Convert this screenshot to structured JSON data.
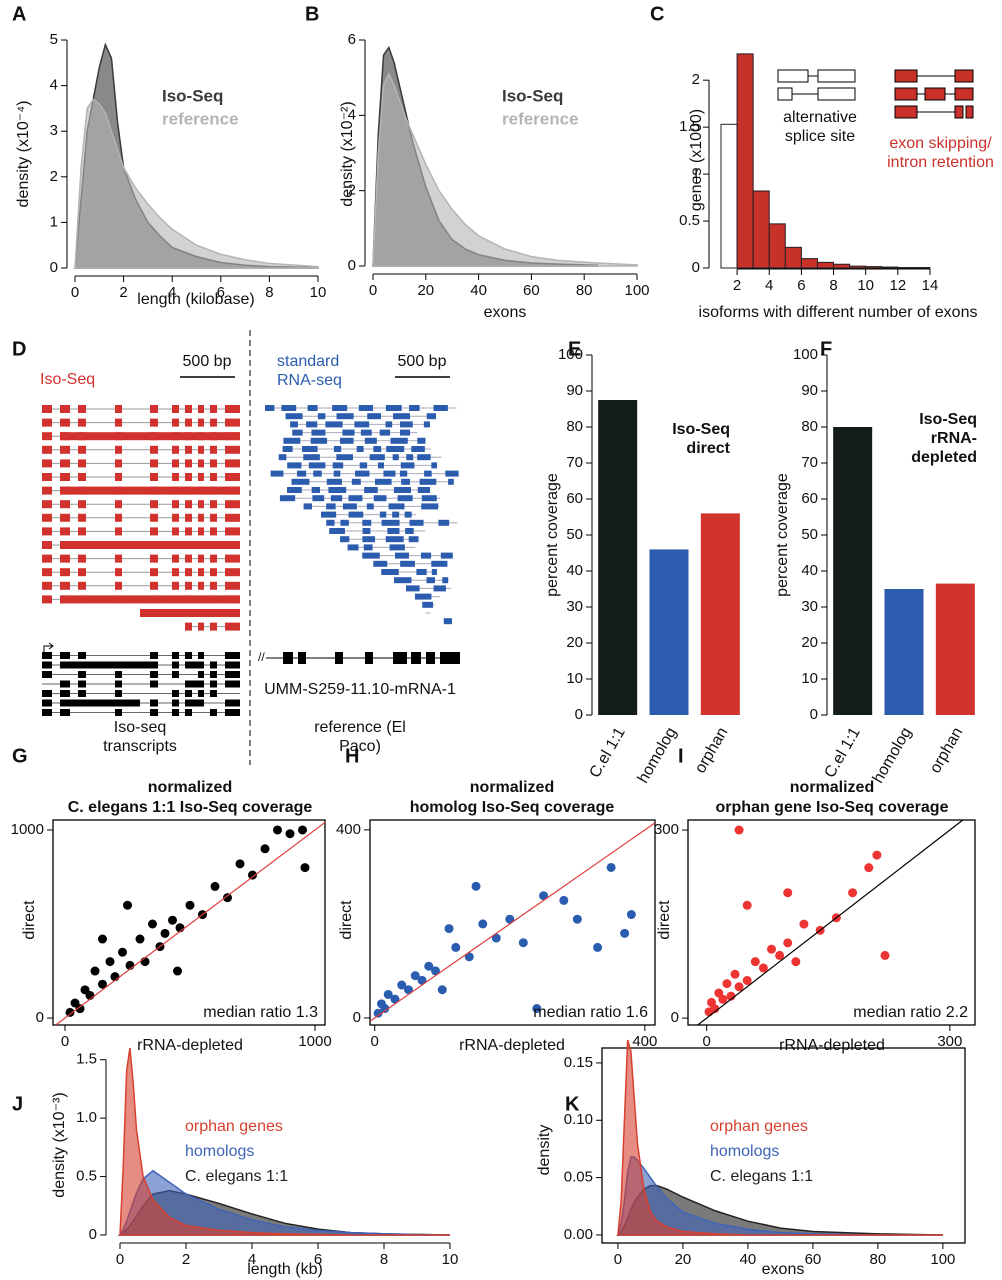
{
  "chart_data": [
    {
      "type": "density",
      "panel": "A",
      "xlabel": "length (kilobase)",
      "ylabel": "density (x10⁻⁴)",
      "x": [
        0,
        0.25,
        0.5,
        0.75,
        1,
        1.25,
        1.5,
        1.75,
        2,
        2.5,
        3,
        3.5,
        4,
        5,
        6,
        7,
        8,
        10
      ],
      "series": [
        {
          "name": "Iso-Seq",
          "color": "#3a3a3a",
          "values": [
            0,
            1.5,
            3.0,
            3.7,
            4.4,
            4.9,
            4.6,
            3.2,
            2.2,
            1.5,
            1.0,
            0.7,
            0.45,
            0.25,
            0.12,
            0.06,
            0.03,
            0.01
          ]
        },
        {
          "name": "reference",
          "color": "#b4b4b4",
          "values": [
            0,
            2.2,
            3.5,
            3.7,
            3.6,
            3.4,
            3.0,
            2.6,
            2.2,
            1.75,
            1.4,
            1.1,
            0.85,
            0.5,
            0.3,
            0.18,
            0.1,
            0.03
          ]
        }
      ],
      "xlim": [
        0,
        10
      ],
      "xticks": [
        0,
        2,
        4,
        6,
        8,
        10
      ],
      "ylim": [
        0,
        5
      ],
      "yticks": [
        0,
        1,
        2,
        3,
        4,
        5
      ]
    },
    {
      "type": "density",
      "panel": "B",
      "xlabel": "exons",
      "ylabel": "density (x10⁻²)",
      "x": [
        0,
        2,
        4,
        6,
        8,
        10,
        12,
        15,
        20,
        25,
        30,
        35,
        40,
        50,
        60,
        70,
        85,
        100
      ],
      "series": [
        {
          "name": "Iso-Seq",
          "color": "#3a3a3a",
          "values": [
            0,
            3.5,
            5.6,
            5.8,
            5.4,
            4.8,
            4.2,
            3.3,
            2.1,
            1.2,
            0.7,
            0.45,
            0.3,
            0.15,
            0.08,
            0.05,
            0.02,
            null
          ]
        },
        {
          "name": "reference",
          "color": "#b4b4b4",
          "values": [
            0,
            3.0,
            4.8,
            5.1,
            4.8,
            4.4,
            4.0,
            3.5,
            2.7,
            2.0,
            1.5,
            1.1,
            0.8,
            0.45,
            0.25,
            0.15,
            0.08,
            0.03
          ]
        }
      ],
      "xlim": [
        0,
        100
      ],
      "xticks": [
        0,
        20,
        40,
        60,
        80,
        100
      ],
      "ylim": [
        0,
        6
      ],
      "yticks": [
        0,
        2,
        4,
        6
      ]
    },
    {
      "type": "histogram",
      "panel": "C",
      "xlabel": "isoforms with different number of exons",
      "ylabel": "genes (x1000)",
      "series": [
        {
          "name": "alternative splice site",
          "color": "#ffffff",
          "bins": [
            1,
            2
          ],
          "values": [
            1.53
          ]
        },
        {
          "name": "exon skipping/ intron retention",
          "color": "#c8302a",
          "bins": [
            2,
            3,
            4,
            5,
            6,
            7,
            8,
            9,
            10,
            11,
            12,
            13,
            14
          ],
          "values": [
            2.28,
            0.82,
            0.47,
            0.22,
            0.1,
            0.06,
            0.04,
            0.02,
            0.015,
            0.01,
            0.005,
            0.005
          ]
        }
      ],
      "xlim": [
        1,
        14
      ],
      "xticks": [
        2,
        4,
        6,
        8,
        10,
        12,
        14
      ],
      "ylim": [
        0,
        2.3
      ],
      "yticks": [
        0,
        0.5,
        1,
        1.5,
        2
      ]
    },
    {
      "type": "bar",
      "panel": "E",
      "ylabel": "percent coverage",
      "annotation": "Iso-Seq direct",
      "categories": [
        "C.el 1:1",
        "homolog",
        "orphan"
      ],
      "values": [
        87.5,
        46,
        56
      ],
      "colors": [
        "#141c1c",
        "#2b5cad",
        "#d2322d"
      ],
      "ylim": [
        0,
        100
      ],
      "yticks": [
        0,
        10,
        20,
        30,
        40,
        50,
        60,
        70,
        80,
        90,
        100
      ]
    },
    {
      "type": "bar",
      "panel": "F",
      "ylabel": "percent coverage",
      "annotation": "Iso-Seq rRNA-depleted",
      "categories": [
        "C.el 1:1",
        "homolog",
        "orphan"
      ],
      "values": [
        80,
        35,
        36.5
      ],
      "colors": [
        "#141c1c",
        "#2b5cad",
        "#d2322d"
      ],
      "ylim": [
        0,
        100
      ],
      "yticks": [
        0,
        10,
        20,
        30,
        40,
        50,
        60,
        70,
        80,
        90,
        100
      ]
    },
    {
      "type": "scatter",
      "panel": "G",
      "title": "normalized",
      "subtitle": "C. elegans 1:1 Iso-Seq coverage",
      "xlabel": "rRNA-depleted",
      "ylabel": "direct",
      "annotation": "median ratio 1.3",
      "identity_line_color": "#e03c3c",
      "series": [
        {
          "color": "#000000",
          "x": [
            20,
            40,
            60,
            80,
            100,
            120,
            150,
            180,
            200,
            230,
            260,
            300,
            320,
            350,
            380,
            400,
            430,
            460,
            500,
            550,
            600,
            650,
            700,
            750,
            800,
            850,
            900,
            950,
            960,
            450,
            250,
            150
          ],
          "values": [
            30,
            80,
            50,
            150,
            120,
            250,
            180,
            300,
            220,
            350,
            280,
            420,
            300,
            500,
            380,
            450,
            520,
            480,
            600,
            550,
            700,
            640,
            820,
            760,
            900,
            1000,
            980,
            1000,
            800,
            250,
            600,
            420
          ]
        }
      ],
      "xlim": [
        -48,
        1040
      ],
      "xticks": [
        0,
        1000
      ],
      "ylim": [
        -37,
        1053
      ],
      "yticks": [
        0,
        1000
      ]
    },
    {
      "type": "scatter",
      "panel": "H",
      "title": "normalized",
      "subtitle": "homolog Iso-Seq coverage",
      "xlabel": "rRNA-depleted",
      "ylabel": "direct",
      "annotation": "median ratio 1.6",
      "identity_line_color": "#e03c3c",
      "series": [
        {
          "color": "#2a5db0",
          "x": [
            5,
            10,
            15,
            20,
            30,
            40,
            50,
            60,
            70,
            80,
            90,
            100,
            120,
            140,
            160,
            180,
            200,
            220,
            250,
            280,
            300,
            330,
            350,
            370,
            380,
            150,
            240,
            110
          ],
          "values": [
            10,
            30,
            20,
            50,
            40,
            70,
            60,
            90,
            80,
            110,
            100,
            60,
            150,
            130,
            200,
            170,
            210,
            160,
            260,
            250,
            210,
            150,
            320,
            180,
            220,
            280,
            20,
            190
          ]
        }
      ],
      "xlim": [
        -7,
        415
      ],
      "xticks": [
        0,
        400
      ],
      "ylim": [
        -15,
        421
      ],
      "yticks": [
        0,
        400
      ]
    },
    {
      "type": "scatter",
      "panel": "I",
      "title": "normalized",
      "subtitle": "orphan gene Iso-Seq coverage",
      "xlabel": "rRNA-depleted",
      "ylabel": "direct",
      "annotation": "median ratio 2.2",
      "identity_line_color": "#000000",
      "series": [
        {
          "color": "#ee3333",
          "x": [
            3,
            6,
            10,
            15,
            20,
            25,
            30,
            35,
            40,
            50,
            60,
            70,
            80,
            90,
            100,
            110,
            120,
            140,
            160,
            180,
            200,
            210,
            220,
            50,
            100,
            40
          ],
          "values": [
            10,
            25,
            15,
            40,
            30,
            55,
            35,
            70,
            50,
            60,
            90,
            80,
            110,
            100,
            120,
            90,
            150,
            140,
            160,
            200,
            240,
            260,
            100,
            180,
            200,
            300
          ]
        }
      ],
      "xlim": [
        -23,
        331
      ],
      "xticks": [
        0,
        300
      ],
      "ylim": [
        -11,
        316
      ],
      "yticks": [
        0,
        300
      ]
    },
    {
      "type": "density",
      "panel": "J",
      "xlabel": "length (kb)",
      "ylabel": "density (x10⁻³)",
      "x": [
        0,
        0.1,
        0.2,
        0.3,
        0.4,
        0.5,
        0.7,
        1,
        1.5,
        2,
        3,
        4,
        5,
        6,
        7,
        8,
        10
      ],
      "series": [
        {
          "name": "C. elegans 1:1",
          "color": "#222222",
          "values": [
            0,
            0.02,
            0.05,
            0.08,
            0.12,
            0.16,
            0.25,
            0.35,
            0.38,
            0.35,
            0.27,
            0.18,
            0.1,
            0.05,
            0.02,
            0.01,
            0
          ]
        },
        {
          "name": "homologs",
          "color": "#3f63b8",
          "values": [
            0,
            0.05,
            0.12,
            0.2,
            0.28,
            0.36,
            0.48,
            0.55,
            0.45,
            0.35,
            0.22,
            0.13,
            0.07,
            0.04,
            0.02,
            0.01,
            0
          ]
        },
        {
          "name": "orphan genes",
          "color": "#d6402f",
          "values": [
            0,
            0.6,
            1.4,
            1.6,
            1.3,
            0.9,
            0.5,
            0.3,
            0.15,
            0.08,
            0.04,
            0.02,
            0.01,
            0.005,
            0,
            0,
            0
          ]
        }
      ],
      "xlim": [
        0,
        10
      ],
      "xticks": [
        0,
        2,
        4,
        6,
        8,
        10
      ],
      "ylim": [
        0,
        1.6
      ],
      "yticks": [
        0,
        0.5,
        {
          "value": 1,
          "label": "1.0"
        },
        1.5
      ]
    },
    {
      "type": "density",
      "panel": "K",
      "xlabel": "exons",
      "ylabel": "density",
      "x": [
        0,
        1,
        2,
        3,
        4,
        5,
        6,
        8,
        10,
        12,
        15,
        20,
        30,
        40,
        50,
        60,
        80,
        100
      ],
      "series": [
        {
          "name": "C. elegans 1:1",
          "color": "#222222",
          "values": [
            0,
            0.003,
            0.008,
            0.015,
            0.022,
            0.028,
            0.033,
            0.04,
            0.043,
            0.043,
            0.04,
            0.033,
            0.021,
            0.012,
            0.006,
            0.003,
            0.001,
            0
          ]
        },
        {
          "name": "homologs",
          "color": "#3f63b8",
          "values": [
            0,
            0.01,
            0.03,
            0.055,
            0.068,
            0.068,
            0.065,
            0.058,
            0.05,
            0.042,
            0.032,
            0.02,
            0.01,
            0.005,
            0.002,
            0.001,
            0,
            0
          ]
        },
        {
          "name": "orphan genes",
          "color": "#d6402f",
          "values": [
            0,
            0.03,
            0.1,
            0.17,
            0.16,
            0.12,
            0.08,
            0.04,
            0.02,
            0.012,
            0.007,
            0.003,
            0.001,
            0,
            0,
            0,
            0,
            0
          ]
        }
      ],
      "xlim": [
        -4.9,
        106.8
      ],
      "xticks": [
        0,
        20,
        40,
        60,
        80,
        100
      ],
      "ylim": [
        -0.007,
        0.163
      ],
      "yticks": [
        {
          "value": 0,
          "label": "0.00"
        },
        {
          "value": 0.05,
          "label": "0.05"
        },
        {
          "value": 0.1,
          "label": "0.10"
        },
        {
          "value": 0.15,
          "label": "0.15"
        }
      ]
    }
  ],
  "panel_d": {
    "panel": "D",
    "left_label": "Iso-Seq",
    "left_scale": "500 bp",
    "left_caption": "Iso-seq transcripts",
    "right_label": "standard RNA-seq",
    "right_scale": "500 bp",
    "gene_id": "UMM-S259-11.10-mRNA-1",
    "right_caption": "reference (El Paco)"
  }
}
